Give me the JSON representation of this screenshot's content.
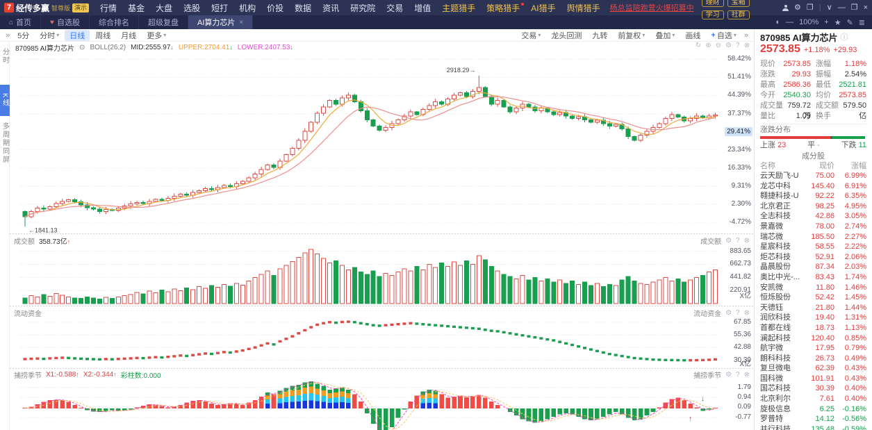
{
  "topbar": {
    "logo_mark": "7",
    "brand": "经传多赢",
    "edition": "智尊版",
    "demo_badge": "演示",
    "menu": [
      "行情",
      "基金",
      "大盘",
      "选股",
      "短打",
      "机构",
      "价投",
      "数据",
      "资讯",
      "研究院",
      "交易",
      "增值"
    ],
    "hunter_menu": [
      {
        "label": "主题猎手",
        "dot": false
      },
      {
        "label": "策略猎手",
        "dot": true
      },
      {
        "label": "AI猎手",
        "dot": false
      },
      {
        "label": "舆情猎手",
        "dot": false
      }
    ],
    "promo": "杨总监陪跑营火爆招募中",
    "quick_buttons": [
      "理财",
      "宝箱",
      "学习",
      "社群"
    ]
  },
  "tabbar": {
    "tabs": [
      {
        "label": "首页",
        "icon": "home",
        "active": false,
        "closable": false
      },
      {
        "label": "自选股",
        "icon": "heart",
        "active": false,
        "closable": false
      },
      {
        "label": "综合排名",
        "icon": "",
        "active": false,
        "closable": false
      },
      {
        "label": "超级复盘",
        "icon": "",
        "active": false,
        "closable": false
      },
      {
        "label": "AI算力芯片",
        "icon": "",
        "active": true,
        "closable": true
      }
    ],
    "zoom_level": "100%"
  },
  "toolbar": {
    "left": [
      {
        "label": "5分",
        "caret": false,
        "active": false
      },
      {
        "label": "分时",
        "caret": true,
        "active": false
      },
      {
        "label": "日线",
        "caret": false,
        "active": true
      },
      {
        "label": "周线",
        "caret": false,
        "active": false
      },
      {
        "label": "月线",
        "caret": false,
        "active": false
      },
      {
        "label": "更多",
        "caret": true,
        "active": false
      }
    ],
    "right": [
      {
        "label": "交易",
        "caret": true,
        "plus": false
      },
      {
        "label": "龙头回测",
        "caret": false,
        "plus": false
      },
      {
        "label": "九转",
        "caret": false,
        "plus": false
      },
      {
        "label": "前复权",
        "caret": true,
        "plus": false
      },
      {
        "label": "叠加",
        "caret": true,
        "plus": false
      },
      {
        "label": "画线",
        "caret": false,
        "plus": false
      },
      {
        "label": "自选",
        "caret": true,
        "plus": true
      }
    ]
  },
  "sidebar": {
    "items": [
      {
        "label": "分时",
        "active": false
      },
      {
        "label": "K线",
        "active": true
      },
      {
        "label": "多周期同屏",
        "active": false
      }
    ]
  },
  "indicator_header": {
    "code_name": "870985 AI算力芯片",
    "study": "BOLL(26,2)",
    "mid": "MID:2555.97",
    "upper": "UPPER:2704.41",
    "lower": "LOWER:2407.53"
  },
  "panes": {
    "volume": {
      "title": "成交额",
      "value": "358.73亿",
      "unit": "X亿"
    },
    "fund": {
      "title": "流动资金",
      "unit": "X亿"
    },
    "season": {
      "title": "捕捞季节",
      "x1": "X1:-0.588",
      "x2": "X2:-0.344",
      "colorbars": "彩柱数:0.000"
    }
  },
  "chart_data": {
    "type": "candlestick",
    "main_axis": {
      "tick_values": [
        58.42,
        51.41,
        44.39,
        37.37,
        23.34,
        16.33,
        9.31,
        2.3,
        -4.72
      ],
      "tick_suffix": "%",
      "current_badge": "29.41%",
      "badge_value": 30.36
    },
    "annotations": {
      "peak": "2918.29",
      "low": "1841.13"
    },
    "first_open": -0.5,
    "closes": [
      -2.5,
      -0.5,
      0.8,
      0.4,
      1.4,
      2.6,
      3.4,
      4.0,
      3.2,
      2.0,
      1.0,
      0.4,
      -0.6,
      0.3,
      -0.1,
      0.8,
      1.6,
      2.4,
      3.0,
      2.6,
      3.4,
      4.2,
      3.8,
      4.6,
      5.4,
      6.2,
      5.8,
      6.8,
      7.6,
      8.4,
      8.0,
      8.8,
      9.6,
      9.2,
      10.2,
      11.2,
      12.5,
      14.0,
      15.8,
      17.5,
      16.5,
      19.0,
      21.5,
      24.0,
      27.0,
      30.5,
      34.0,
      37.5,
      40.0,
      42.5,
      41.0,
      43.5,
      44.5,
      42.0,
      38.5,
      35.0,
      32.5,
      31.0,
      32.0,
      33.5,
      35.0,
      36.5,
      38.0,
      37.0,
      39.0,
      40.5,
      42.0,
      41.0,
      43.0,
      44.5,
      45.5,
      44.0,
      46.0,
      47.5,
      44.0,
      41.0,
      42.5,
      40.0,
      38.0,
      39.5,
      41.0,
      40.0,
      38.5,
      39.5,
      38.0,
      37.0,
      37.8,
      36.5,
      35.5,
      36.2,
      35.0,
      34.0,
      34.8,
      33.5,
      32.5,
      33.2,
      31.5,
      28.5,
      27.0,
      29.0,
      30.5,
      32.0,
      33.5,
      35.5,
      37.0,
      36.0,
      34.5,
      35.5,
      36.5,
      35.8,
      36.5,
      36.8
    ],
    "volumes": [
      10,
      14,
      12,
      16,
      13,
      18,
      15,
      12,
      10,
      9,
      12,
      10,
      8,
      11,
      9,
      12,
      14,
      16,
      20,
      17,
      22,
      19,
      24,
      21,
      26,
      23,
      28,
      25,
      30,
      27,
      32,
      29,
      34,
      31,
      36,
      33,
      40,
      46,
      52,
      58,
      50,
      62,
      68,
      75,
      82,
      90,
      96,
      88,
      80,
      72,
      76,
      68,
      60,
      64,
      56,
      52,
      58,
      48,
      54,
      50,
      56,
      62,
      58,
      66,
      60,
      70,
      64,
      72,
      66,
      74,
      68,
      76,
      70,
      85,
      78,
      66,
      58,
      52,
      48,
      44,
      50,
      42,
      46,
      40,
      44,
      38,
      42,
      36,
      40,
      34,
      38,
      32,
      36,
      30,
      34,
      32,
      42,
      48,
      40,
      36,
      34,
      38,
      42,
      46,
      40,
      44,
      38,
      42,
      46,
      50,
      56,
      60
    ],
    "volume_axis": {
      "tick_values": [
        883.65,
        662.73,
        441.82,
        220.91
      ],
      "max": 950,
      "unit": "X亿"
    },
    "fund_values": [
      31.5,
      31.8,
      32.0,
      31.7,
      32.2,
      32.5,
      32.8,
      32.6,
      32.2,
      31.9,
      31.6,
      31.4,
      31.2,
      31.5,
      31.3,
      31.6,
      31.9,
      32.2,
      32.6,
      32.4,
      32.9,
      33.4,
      33.1,
      33.7,
      34.3,
      35.0,
      34.6,
      35.4,
      36.2,
      37.0,
      36.6,
      37.5,
      38.4,
      38.0,
      39.0,
      40.0,
      41.5,
      43.0,
      45.0,
      47.0,
      46.0,
      49.0,
      51.5,
      54.0,
      57.0,
      60.0,
      63.0,
      65.5,
      67.0,
      68.0,
      67.5,
      68.2,
      68.5,
      68.0,
      67.0,
      66.0,
      65.0,
      64.5,
      65.0,
      65.5,
      66.0,
      66.5,
      67.0,
      66.5,
      66.0,
      65.5,
      65.0,
      64.5,
      64.0,
      63.5,
      63.0,
      62.5,
      62.0,
      61.5,
      60.5,
      59.5,
      59.0,
      58.0,
      57.0,
      56.0,
      55.0,
      54.0,
      53.0,
      52.0,
      51.0,
      50.0,
      48.5,
      47.0,
      45.5,
      44.0,
      42.5,
      41.0,
      39.5,
      38.0,
      36.5,
      35.5,
      34.5,
      33.5,
      32.5,
      32.0,
      31.5,
      31.0,
      30.8,
      30.6,
      30.5,
      30.4,
      30.3,
      30.3,
      30.4,
      30.5,
      30.8,
      31.2
    ],
    "fund_axis": {
      "tick_values": [
        67.85,
        55.36,
        42.88,
        30.39
      ],
      "min": 28,
      "max": 72,
      "unit": "X亿"
    },
    "season_values": [
      0.05,
      0.15,
      0.35,
      0.55,
      0.7,
      0.75,
      0.7,
      0.55,
      0.3,
      0.05,
      -0.15,
      -0.25,
      -0.3,
      -0.25,
      -0.15,
      -0.2,
      -0.15,
      -0.1,
      0.1,
      0.25,
      0.35,
      0.3,
      0.2,
      0.1,
      0.15,
      0.3,
      0.5,
      0.65,
      0.7,
      0.6,
      0.4,
      0.3,
      0.35,
      0.45,
      0.4,
      0.3,
      0.5,
      0.7,
      1.0,
      1.35,
      1.2,
      1.5,
      1.75,
      1.9,
      2.0,
      2.2,
      2.3,
      2.1,
      1.9,
      1.6,
      1.7,
      1.8,
      1.6,
      1.2,
      0.6,
      -0.4,
      -1.3,
      -2.0,
      -2.2,
      -1.6,
      -0.8,
      -0.1,
      0.6,
      1.1,
      1.45,
      1.6,
      1.5,
      1.2,
      0.9,
      1.0,
      1.1,
      0.95,
      1.05,
      1.15,
      0.9,
      0.6,
      0.3,
      0.0,
      -0.3,
      -0.6,
      -0.9,
      -1.1,
      -1.2,
      -1.1,
      -0.9,
      -0.7,
      -0.5,
      -0.4,
      -0.5,
      -0.7,
      -0.9,
      -1.0,
      -0.9,
      -0.7,
      -0.5,
      -0.3,
      -0.5,
      -0.8,
      -1.0,
      -0.9,
      -0.6,
      -0.3,
      0.1,
      0.5,
      0.8,
      0.9,
      0.7,
      0.4,
      0.1,
      -0.2,
      -0.1,
      0.05
    ],
    "season_axis": {
      "tick_values": [
        1.79,
        0.94,
        0.09,
        -0.77
      ]
    },
    "colors": {
      "up": "#dd4b44",
      "down": "#1a9e4f",
      "ma_fast": "#f2a93b",
      "ma_slow": "#ef8e8e",
      "stack_blue": "#1836e0",
      "stack_cyan": "#23c6ee",
      "stack_orange": "#f09c1c",
      "stack_green": "#18a04c",
      "dash_magenta": "#ff3db0",
      "dash_gold": "#f7c85c",
      "badge_bg": "#cfe2f8"
    }
  },
  "quote_panel": {
    "title": "870985 AI算力芯片",
    "price": "2573.85",
    "change_pct": "+1.18%",
    "change_val": "+29.93",
    "info_rows": [
      {
        "l1": "现价",
        "v1": "2573.85",
        "c1": "red",
        "l2": "涨幅",
        "v2": "1.18%",
        "c2": "red"
      },
      {
        "l1": "涨跌",
        "v1": "29.93",
        "c1": "red",
        "l2": "振幅",
        "v2": "2.54%",
        "c2": "dark"
      },
      {
        "l1": "最高",
        "v1": "2586.36",
        "c1": "red",
        "l2": "最低",
        "v2": "2521.81",
        "c2": "green"
      },
      {
        "l1": "今开",
        "v1": "2540.30",
        "c1": "green",
        "l2": "均价",
        "v2": "2573.85",
        "c2": "red"
      },
      {
        "l1": "成交量",
        "v1": "759.72万",
        "c1": "dark",
        "l2": "成交额",
        "v2": "579.50亿",
        "c2": "dark"
      },
      {
        "l1": "量比",
        "v1": "1.09",
        "c1": "dark",
        "l2": "换手",
        "v2": "-",
        "c2": "dark"
      }
    ],
    "distribution": {
      "title": "涨跌分布",
      "up_label": "上涨",
      "up": "23",
      "flat_label": "平",
      "flat": "-",
      "down_label": "下跌",
      "down": "11",
      "up_ratio": 0.66,
      "down_ratio": 0.31
    }
  },
  "components": {
    "title": "成分股",
    "headers": [
      "名称",
      "现价",
      "涨幅"
    ],
    "rows": [
      [
        "云天励飞-U",
        "75.00",
        "6.99%",
        "up"
      ],
      [
        "龙芯中科",
        "145.40",
        "6.91%",
        "up"
      ],
      [
        "翱捷科技-U",
        "92.22",
        "6.35%",
        "up"
      ],
      [
        "北京君正",
        "98.25",
        "4.95%",
        "up"
      ],
      [
        "全志科技",
        "42.86",
        "3.05%",
        "up"
      ],
      [
        "景嘉微",
        "78.00",
        "2.74%",
        "up"
      ],
      [
        "瑞芯微",
        "185.50",
        "2.27%",
        "up"
      ],
      [
        "星宸科技",
        "58.55",
        "2.22%",
        "up"
      ],
      [
        "炬芯科技",
        "52.91",
        "2.06%",
        "up"
      ],
      [
        "晶晨股份",
        "87.34",
        "2.03%",
        "up"
      ],
      [
        "奥比中光-...",
        "83.43",
        "1.74%",
        "up"
      ],
      [
        "安凯微",
        "11.80",
        "1.46%",
        "up"
      ],
      [
        "恒烁股份",
        "52.42",
        "1.45%",
        "up"
      ],
      [
        "天德钰",
        "21.80",
        "1.44%",
        "up"
      ],
      [
        "润欣科技",
        "19.40",
        "1.31%",
        "up"
      ],
      [
        "首都在线",
        "18.73",
        "1.13%",
        "up"
      ],
      [
        "澜起科技",
        "120.40",
        "0.85%",
        "up"
      ],
      [
        "航宇微",
        "17.95",
        "0.79%",
        "up"
      ],
      [
        "朗科科技",
        "26.73",
        "0.49%",
        "up"
      ],
      [
        "复旦微电",
        "62.39",
        "0.43%",
        "up"
      ],
      [
        "国科微",
        "101.91",
        "0.43%",
        "up"
      ],
      [
        "国芯科技",
        "30.39",
        "0.40%",
        "up"
      ],
      [
        "北京利尔",
        "7.61",
        "0.40%",
        "up"
      ],
      [
        "旋极信息",
        "6.25",
        "-0.16%",
        "down"
      ],
      [
        "罗普特",
        "14.12",
        "-0.56%",
        "down"
      ],
      [
        "并行科技",
        "135.48",
        "-0.59%",
        "down"
      ]
    ]
  }
}
